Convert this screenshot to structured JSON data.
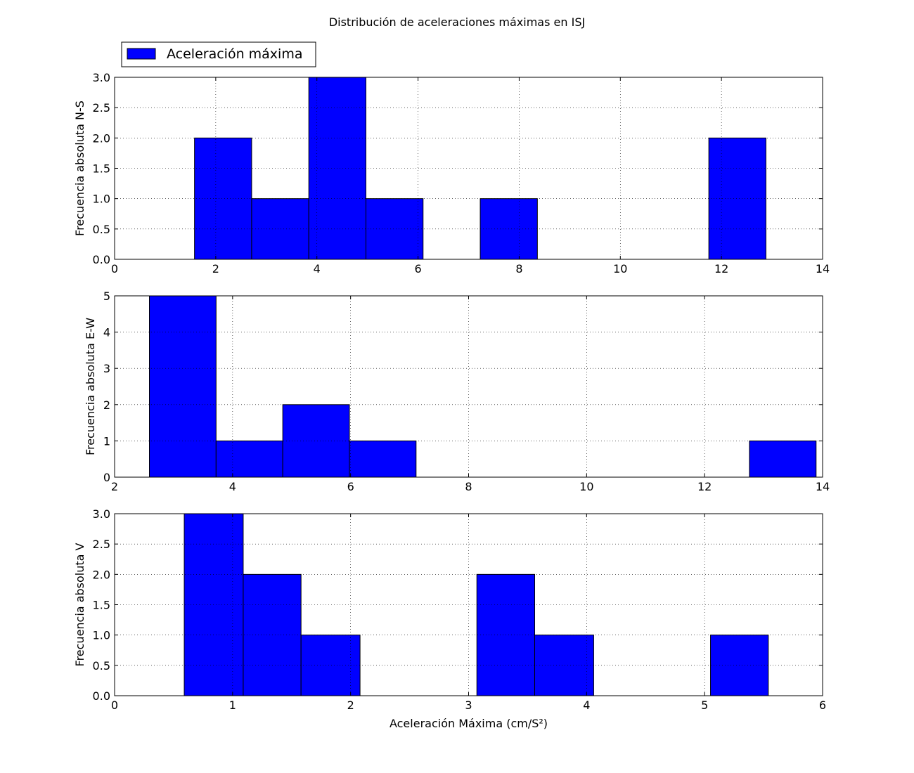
{
  "title": "Distribución de aceleraciones máximas en ISJ",
  "legend": {
    "label": "Aceleración máxima",
    "color": "#0000ff",
    "placement": "upper-left"
  },
  "chart_data": [
    {
      "type": "bar",
      "ylabel": "Frecuencia absoluta N-S",
      "xlabel": "",
      "xlim": [
        0,
        14
      ],
      "ylim": [
        0,
        3
      ],
      "xticks": [
        0,
        2,
        4,
        6,
        8,
        10,
        12,
        14
      ],
      "yticks": [
        0,
        0.5,
        1,
        1.5,
        2,
        2.5,
        3
      ],
      "ytick_labels": [
        "0.0",
        "0.5",
        "1.0",
        "1.5",
        "2.0",
        "2.5",
        "3.0"
      ],
      "grid": true,
      "bar_color": "#0000ff",
      "bins": [
        {
          "x0": 1.58,
          "x1": 2.71,
          "count": 2
        },
        {
          "x0": 2.71,
          "x1": 3.84,
          "count": 1
        },
        {
          "x0": 3.84,
          "x1": 4.97,
          "count": 3
        },
        {
          "x0": 4.97,
          "x1": 6.1,
          "count": 1
        },
        {
          "x0": 6.1,
          "x1": 7.23,
          "count": 0
        },
        {
          "x0": 7.23,
          "x1": 8.36,
          "count": 1
        },
        {
          "x0": 8.36,
          "x1": 9.49,
          "count": 0
        },
        {
          "x0": 9.49,
          "x1": 10.62,
          "count": 0
        },
        {
          "x0": 10.62,
          "x1": 11.75,
          "count": 0
        },
        {
          "x0": 11.75,
          "x1": 12.88,
          "count": 2
        }
      ]
    },
    {
      "type": "bar",
      "ylabel": "Frecuencia absoluta E-W",
      "xlabel": "",
      "xlim": [
        2,
        14
      ],
      "ylim": [
        0,
        5
      ],
      "xticks": [
        2,
        4,
        6,
        8,
        10,
        12,
        14
      ],
      "yticks": [
        0,
        1,
        2,
        3,
        4,
        5
      ],
      "ytick_labels": [
        "0",
        "1",
        "2",
        "3",
        "4",
        "5"
      ],
      "grid": true,
      "bar_color": "#0000ff",
      "bins": [
        {
          "x0": 2.59,
          "x1": 3.72,
          "count": 5
        },
        {
          "x0": 3.72,
          "x1": 4.85,
          "count": 1
        },
        {
          "x0": 4.85,
          "x1": 5.98,
          "count": 2
        },
        {
          "x0": 5.98,
          "x1": 7.11,
          "count": 1
        },
        {
          "x0": 7.11,
          "x1": 8.24,
          "count": 0
        },
        {
          "x0": 8.24,
          "x1": 9.37,
          "count": 0
        },
        {
          "x0": 9.37,
          "x1": 10.5,
          "count": 0
        },
        {
          "x0": 10.5,
          "x1": 11.63,
          "count": 0
        },
        {
          "x0": 11.63,
          "x1": 12.76,
          "count": 0
        },
        {
          "x0": 12.76,
          "x1": 13.89,
          "count": 1
        }
      ]
    },
    {
      "type": "bar",
      "ylabel": "Frecuencia absoluta V",
      "xlabel": "Aceleración Máxima (cm/S²)",
      "xlim": [
        0,
        6
      ],
      "ylim": [
        0,
        3
      ],
      "xticks": [
        0,
        1,
        2,
        3,
        4,
        5,
        6
      ],
      "yticks": [
        0,
        0.5,
        1,
        1.5,
        2,
        2.5,
        3
      ],
      "ytick_labels": [
        "0.0",
        "0.5",
        "1.0",
        "1.5",
        "2.0",
        "2.5",
        "3.0"
      ],
      "grid": true,
      "bar_color": "#0000ff",
      "bins": [
        {
          "x0": 0.59,
          "x1": 1.09,
          "count": 3
        },
        {
          "x0": 1.09,
          "x1": 1.58,
          "count": 2
        },
        {
          "x0": 1.58,
          "x1": 2.08,
          "count": 1
        },
        {
          "x0": 2.08,
          "x1": 2.57,
          "count": 0
        },
        {
          "x0": 2.57,
          "x1": 3.07,
          "count": 0
        },
        {
          "x0": 3.07,
          "x1": 3.56,
          "count": 2
        },
        {
          "x0": 3.56,
          "x1": 4.06,
          "count": 1
        },
        {
          "x0": 4.06,
          "x1": 4.55,
          "count": 0
        },
        {
          "x0": 4.55,
          "x1": 5.05,
          "count": 0
        },
        {
          "x0": 5.05,
          "x1": 5.54,
          "count": 1
        }
      ]
    }
  ]
}
